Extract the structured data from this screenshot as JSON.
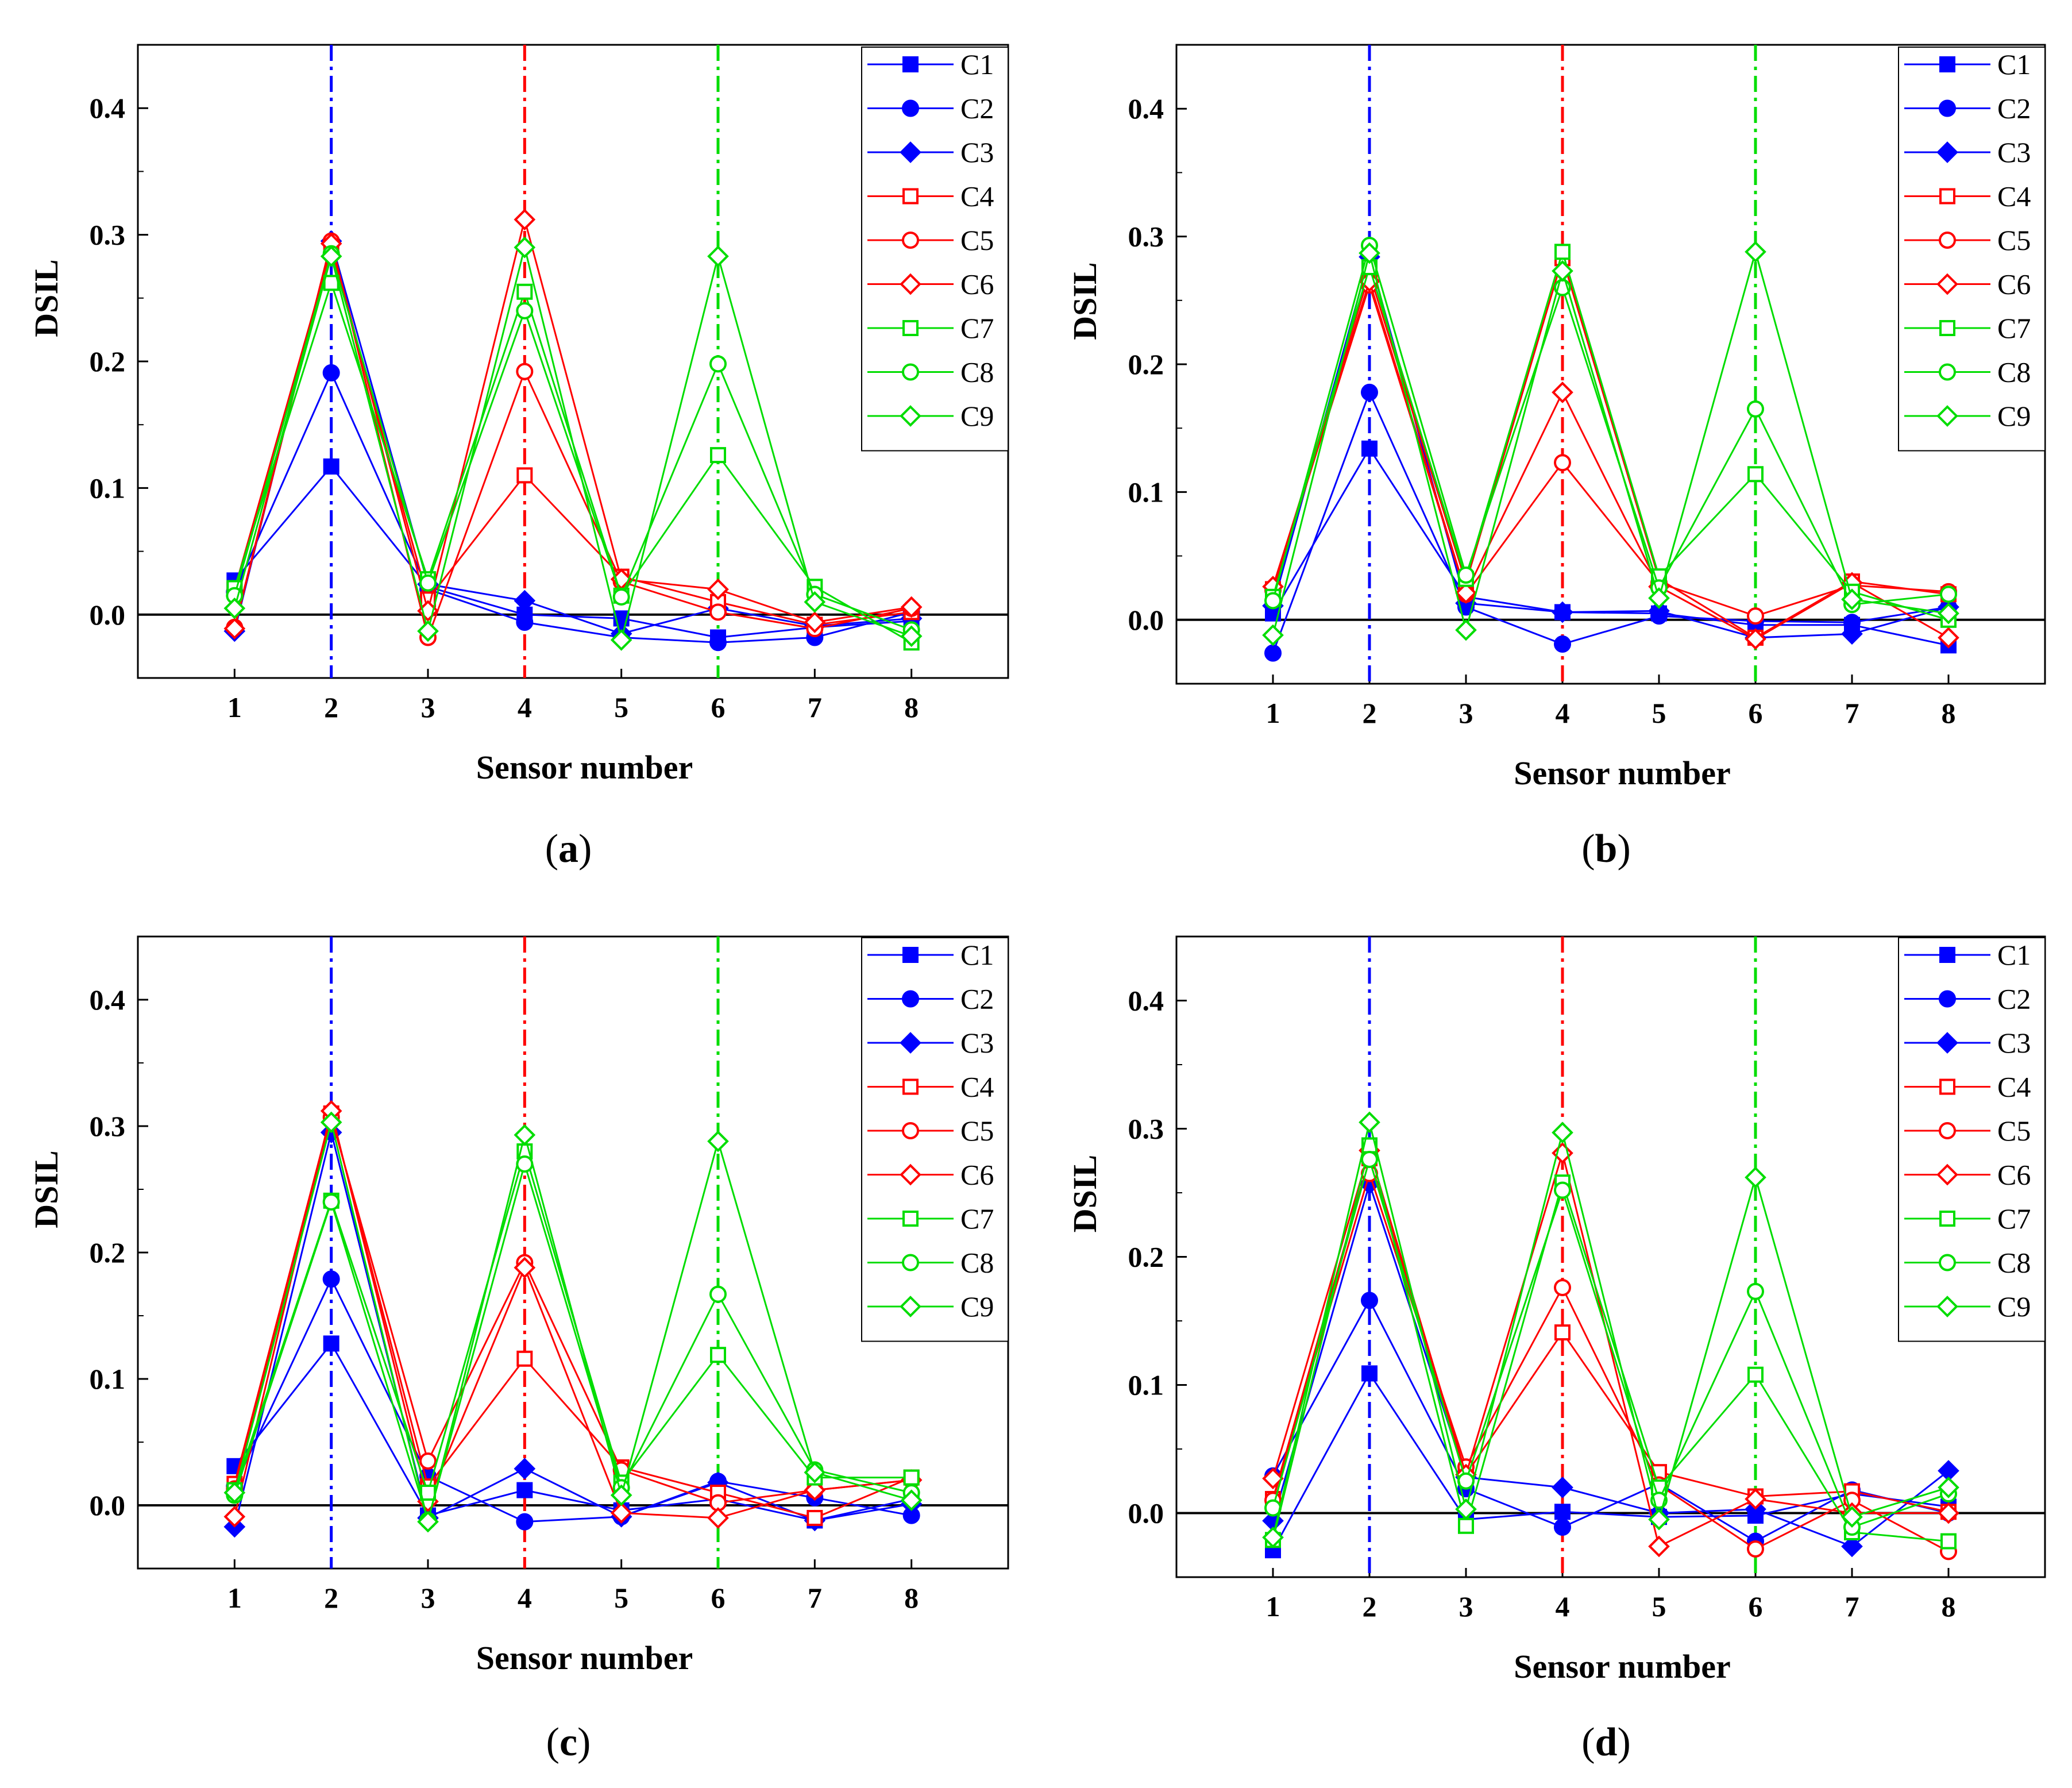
{
  "figure": {
    "background": "#ffffff"
  },
  "chart_data": [
    {
      "panel": "(a)",
      "panel_letter": "a",
      "type": "line",
      "xlabel": "Sensor number",
      "ylabel": "DSIL",
      "xlim": [
        0,
        9
      ],
      "ylim": [
        -0.05,
        0.45
      ],
      "xticks": [
        1,
        2,
        3,
        4,
        5,
        6,
        7,
        8
      ],
      "yticks": [
        0.0,
        0.1,
        0.2,
        0.3,
        0.4
      ],
      "ytick_labels": [
        "0.0",
        "0.1",
        "0.2",
        "0.3",
        "0.4"
      ],
      "reference_lines": [
        {
          "x": 2,
          "color": "#0000ff"
        },
        {
          "x": 4,
          "color": "#ff0000"
        },
        {
          "x": 6,
          "color": "#00dd00"
        }
      ],
      "categories": [
        1,
        2,
        3,
        4,
        5,
        6,
        7,
        8
      ],
      "series": [
        {
          "name": "C1",
          "color": "#0000ff",
          "marker": "square",
          "filled": true,
          "values": [
            0.027,
            0.117,
            0.022,
            0.0,
            -0.003,
            -0.018,
            -0.01,
            -0.005
          ]
        },
        {
          "name": "C2",
          "color": "#0000ff",
          "marker": "circle",
          "filled": true,
          "values": [
            0.018,
            0.191,
            0.02,
            -0.006,
            -0.018,
            -0.022,
            -0.018,
            0.002
          ]
        },
        {
          "name": "C3",
          "color": "#0000ff",
          "marker": "diamond",
          "filled": true,
          "values": [
            -0.013,
            0.295,
            0.024,
            0.011,
            -0.015,
            0.005,
            -0.009,
            -0.003
          ]
        },
        {
          "name": "C4",
          "color": "#ff0000",
          "marker": "square",
          "filled": false,
          "values": [
            0.02,
            0.289,
            0.012,
            0.11,
            0.03,
            0.01,
            -0.008,
            0.002
          ]
        },
        {
          "name": "C5",
          "color": "#ff0000",
          "marker": "circle",
          "filled": false,
          "values": [
            -0.01,
            0.295,
            -0.018,
            0.192,
            0.026,
            0.002,
            -0.011,
            0.005
          ]
        },
        {
          "name": "C6",
          "color": "#ff0000",
          "marker": "diamond",
          "filled": false,
          "values": [
            -0.011,
            0.293,
            0.003,
            0.312,
            0.028,
            0.02,
            -0.006,
            0.006
          ]
        },
        {
          "name": "C7",
          "color": "#00dd00",
          "marker": "square",
          "filled": false,
          "values": [
            0.021,
            0.262,
            0.028,
            0.255,
            0.015,
            0.126,
            0.022,
            -0.022
          ]
        },
        {
          "name": "C8",
          "color": "#00dd00",
          "marker": "circle",
          "filled": false,
          "values": [
            0.015,
            0.285,
            0.025,
            0.24,
            0.014,
            0.198,
            0.016,
            -0.012
          ]
        },
        {
          "name": "C9",
          "color": "#00dd00",
          "marker": "diamond",
          "filled": false,
          "values": [
            0.005,
            0.283,
            -0.013,
            0.29,
            -0.02,
            0.283,
            0.01,
            -0.017
          ]
        }
      ]
    },
    {
      "panel": "(b)",
      "panel_letter": "b",
      "type": "line",
      "xlabel": "Sensor number",
      "ylabel": "DSIL",
      "xlim": [
        0,
        9
      ],
      "ylim": [
        -0.05,
        0.45
      ],
      "xticks": [
        1,
        2,
        3,
        4,
        5,
        6,
        7,
        8
      ],
      "yticks": [
        0.0,
        0.1,
        0.2,
        0.3,
        0.4
      ],
      "ytick_labels": [
        "0.0",
        "0.1",
        "0.2",
        "0.3",
        "0.4"
      ],
      "reference_lines": [
        {
          "x": 2,
          "color": "#0000ff"
        },
        {
          "x": 4,
          "color": "#ff0000"
        },
        {
          "x": 6,
          "color": "#00dd00"
        }
      ],
      "categories": [
        1,
        2,
        3,
        4,
        5,
        6,
        7,
        8
      ],
      "series": [
        {
          "name": "C1",
          "color": "#0000ff",
          "marker": "square",
          "filled": true,
          "values": [
            0.005,
            0.134,
            0.018,
            0.006,
            0.005,
            -0.004,
            -0.004,
            -0.02
          ]
        },
        {
          "name": "C2",
          "color": "#0000ff",
          "marker": "circle",
          "filled": true,
          "values": [
            -0.026,
            0.178,
            0.01,
            -0.019,
            0.003,
            -0.001,
            -0.002,
            0.01
          ]
        },
        {
          "name": "C3",
          "color": "#0000ff",
          "marker": "diamond",
          "filled": true,
          "values": [
            0.011,
            0.284,
            0.013,
            0.006,
            0.007,
            -0.014,
            -0.011,
            0.01
          ]
        },
        {
          "name": "C4",
          "color": "#ff0000",
          "marker": "square",
          "filled": false,
          "values": [
            0.024,
            0.271,
            0.029,
            0.283,
            0.032,
            -0.014,
            0.03,
            0.02
          ]
        },
        {
          "name": "C5",
          "color": "#ff0000",
          "marker": "circle",
          "filled": false,
          "values": [
            0.023,
            0.262,
            0.02,
            0.123,
            0.029,
            0.003,
            0.027,
            0.022
          ]
        },
        {
          "name": "C6",
          "color": "#ff0000",
          "marker": "diamond",
          "filled": false,
          "values": [
            0.026,
            0.265,
            0.021,
            0.178,
            0.026,
            -0.015,
            0.029,
            -0.014
          ]
        },
        {
          "name": "C7",
          "color": "#00dd00",
          "marker": "square",
          "filled": false,
          "values": [
            0.018,
            0.276,
            0.032,
            0.288,
            0.034,
            0.114,
            0.022,
            0.0
          ]
        },
        {
          "name": "C8",
          "color": "#00dd00",
          "marker": "circle",
          "filled": false,
          "values": [
            0.015,
            0.293,
            0.035,
            0.26,
            0.025,
            0.165,
            0.012,
            0.02
          ]
        },
        {
          "name": "C9",
          "color": "#00dd00",
          "marker": "diamond",
          "filled": false,
          "values": [
            -0.012,
            0.287,
            -0.008,
            0.273,
            0.017,
            0.288,
            0.016,
            0.005
          ]
        }
      ]
    },
    {
      "panel": "(c)",
      "panel_letter": "c",
      "type": "line",
      "xlabel": "Sensor number",
      "ylabel": "DSIL",
      "xlim": [
        0,
        9
      ],
      "ylim": [
        -0.05,
        0.45
      ],
      "xticks": [
        1,
        2,
        3,
        4,
        5,
        6,
        7,
        8
      ],
      "yticks": [
        0.0,
        0.1,
        0.2,
        0.3,
        0.4
      ],
      "ytick_labels": [
        "0.0",
        "0.1",
        "0.2",
        "0.3",
        "0.4"
      ],
      "reference_lines": [
        {
          "x": 2,
          "color": "#0000ff"
        },
        {
          "x": 4,
          "color": "#ff0000"
        },
        {
          "x": 6,
          "color": "#00dd00"
        }
      ],
      "categories": [
        1,
        2,
        3,
        4,
        5,
        6,
        7,
        8
      ],
      "series": [
        {
          "name": "C1",
          "color": "#0000ff",
          "marker": "square",
          "filled": true,
          "values": [
            0.031,
            0.128,
            -0.008,
            0.012,
            -0.004,
            0.005,
            -0.012,
            0.005
          ]
        },
        {
          "name": "C2",
          "color": "#0000ff",
          "marker": "circle",
          "filled": true,
          "values": [
            0.015,
            0.179,
            0.023,
            -0.013,
            -0.009,
            0.019,
            0.006,
            -0.008
          ]
        },
        {
          "name": "C3",
          "color": "#0000ff",
          "marker": "diamond",
          "filled": true,
          "values": [
            -0.017,
            0.295,
            -0.01,
            0.029,
            -0.009,
            0.018,
            -0.012,
            0.001
          ]
        },
        {
          "name": "C4",
          "color": "#ff0000",
          "marker": "square",
          "filled": false,
          "values": [
            0.017,
            0.31,
            0.015,
            0.116,
            0.03,
            0.01,
            -0.01,
            0.022
          ]
        },
        {
          "name": "C5",
          "color": "#ff0000",
          "marker": "circle",
          "filled": false,
          "values": [
            0.013,
            0.307,
            0.035,
            0.192,
            0.028,
            0.002,
            0.012,
            0.02
          ]
        },
        {
          "name": "C6",
          "color": "#ff0000",
          "marker": "diamond",
          "filled": false,
          "values": [
            -0.009,
            0.312,
            0.003,
            0.188,
            -0.006,
            -0.01,
            0.012,
            0.02
          ]
        },
        {
          "name": "C7",
          "color": "#00dd00",
          "marker": "square",
          "filled": false,
          "values": [
            0.012,
            0.241,
            0.01,
            0.28,
            0.018,
            0.119,
            0.022,
            0.022
          ]
        },
        {
          "name": "C8",
          "color": "#00dd00",
          "marker": "circle",
          "filled": false,
          "values": [
            0.008,
            0.24,
            -0.012,
            0.27,
            0.014,
            0.167,
            0.028,
            0.01
          ]
        },
        {
          "name": "C9",
          "color": "#00dd00",
          "marker": "diamond",
          "filled": false,
          "values": [
            0.01,
            0.303,
            -0.013,
            0.293,
            0.008,
            0.288,
            0.026,
            0.004
          ]
        }
      ]
    },
    {
      "panel": "(d)",
      "panel_letter": "d",
      "type": "line",
      "xlabel": "Sensor number",
      "ylabel": "DSIL",
      "xlim": [
        0,
        9
      ],
      "ylim": [
        -0.05,
        0.45
      ],
      "xticks": [
        1,
        2,
        3,
        4,
        5,
        6,
        7,
        8
      ],
      "yticks": [
        0.0,
        0.1,
        0.2,
        0.3,
        0.4
      ],
      "ytick_labels": [
        "0.0",
        "0.1",
        "0.2",
        "0.3",
        "0.4"
      ],
      "reference_lines": [
        {
          "x": 2,
          "color": "#0000ff"
        },
        {
          "x": 4,
          "color": "#ff0000"
        },
        {
          "x": 6,
          "color": "#00dd00"
        }
      ],
      "categories": [
        1,
        2,
        3,
        4,
        5,
        6,
        7,
        8
      ],
      "series": [
        {
          "name": "C1",
          "color": "#0000ff",
          "marker": "square",
          "filled": true,
          "values": [
            -0.029,
            0.109,
            -0.005,
            0.001,
            -0.003,
            -0.002,
            0.015,
            0.005
          ]
        },
        {
          "name": "C2",
          "color": "#0000ff",
          "marker": "circle",
          "filled": true,
          "values": [
            0.029,
            0.166,
            0.019,
            -0.011,
            0.023,
            -0.022,
            0.018,
            0.0
          ]
        },
        {
          "name": "C3",
          "color": "#0000ff",
          "marker": "diamond",
          "filled": true,
          "values": [
            -0.006,
            0.257,
            0.028,
            0.02,
            0.0,
            0.003,
            -0.026,
            0.033
          ]
        },
        {
          "name": "C4",
          "color": "#ff0000",
          "marker": "square",
          "filled": false,
          "values": [
            0.011,
            0.277,
            0.03,
            0.141,
            0.032,
            0.013,
            0.017,
            0.001
          ]
        },
        {
          "name": "C5",
          "color": "#ff0000",
          "marker": "circle",
          "filled": false,
          "values": [
            0.01,
            0.265,
            0.036,
            0.176,
            0.022,
            -0.028,
            0.01,
            -0.03
          ]
        },
        {
          "name": "C6",
          "color": "#ff0000",
          "marker": "diamond",
          "filled": false,
          "values": [
            0.027,
            0.283,
            0.03,
            0.281,
            -0.026,
            0.011,
            0.0,
            0.0
          ]
        },
        {
          "name": "C7",
          "color": "#00dd00",
          "marker": "square",
          "filled": false,
          "values": [
            -0.021,
            0.287,
            -0.01,
            0.258,
            0.02,
            0.108,
            -0.015,
            -0.022
          ]
        },
        {
          "name": "C8",
          "color": "#00dd00",
          "marker": "circle",
          "filled": false,
          "values": [
            0.004,
            0.276,
            0.025,
            0.252,
            0.01,
            0.173,
            -0.011,
            0.015
          ]
        },
        {
          "name": "C9",
          "color": "#00dd00",
          "marker": "diamond",
          "filled": false,
          "values": [
            -0.019,
            0.305,
            0.003,
            0.297,
            -0.005,
            0.262,
            -0.003,
            0.02
          ]
        }
      ]
    }
  ]
}
